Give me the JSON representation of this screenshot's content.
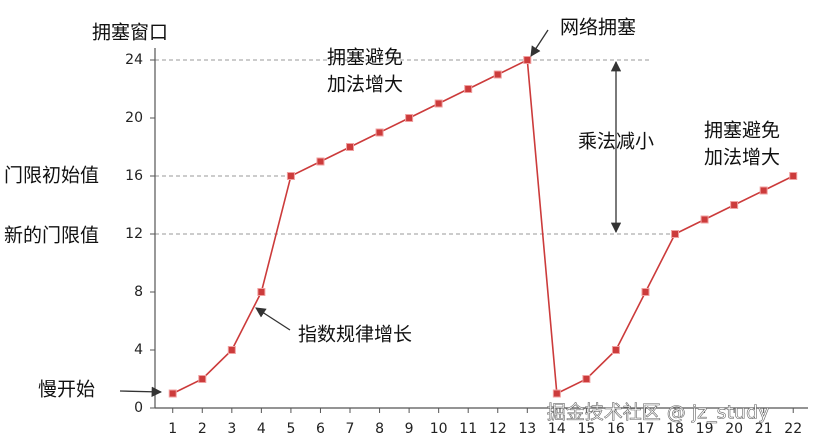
{
  "chart_data": {
    "type": "line",
    "ylabel": "拥塞窗口",
    "x": [
      1,
      2,
      3,
      4,
      5,
      6,
      7,
      8,
      9,
      10,
      11,
      12,
      13,
      14,
      15,
      16,
      17,
      18,
      19,
      20,
      21,
      22
    ],
    "series": [
      {
        "color": "#cc3b3b",
        "values": [
          1,
          2,
          4,
          8,
          16,
          17,
          18,
          19,
          20,
          21,
          22,
          23,
          24,
          1,
          2,
          4,
          8,
          12,
          13,
          14,
          15,
          16
        ]
      }
    ],
    "xlim": [
      0.4,
      22.5
    ],
    "xticks": [
      1,
      2,
      3,
      4,
      5,
      6,
      7,
      8,
      9,
      10,
      11,
      12,
      13,
      14,
      15,
      16,
      17,
      18,
      19,
      20,
      21,
      22
    ],
    "ylim": [
      0,
      24
    ],
    "yticks": [
      0,
      4,
      8,
      12,
      16,
      20,
      24
    ],
    "hlines": [
      24,
      16,
      12
    ],
    "annotations": [
      "拥塞避免",
      "加法增大",
      "网络拥塞",
      "乘法减小",
      "拥塞避免",
      "加法增大",
      "门限初始值",
      "新的门限值",
      "慢开始",
      "指数规律增长",
      "掘金技术社区 @ jz_study"
    ]
  }
}
